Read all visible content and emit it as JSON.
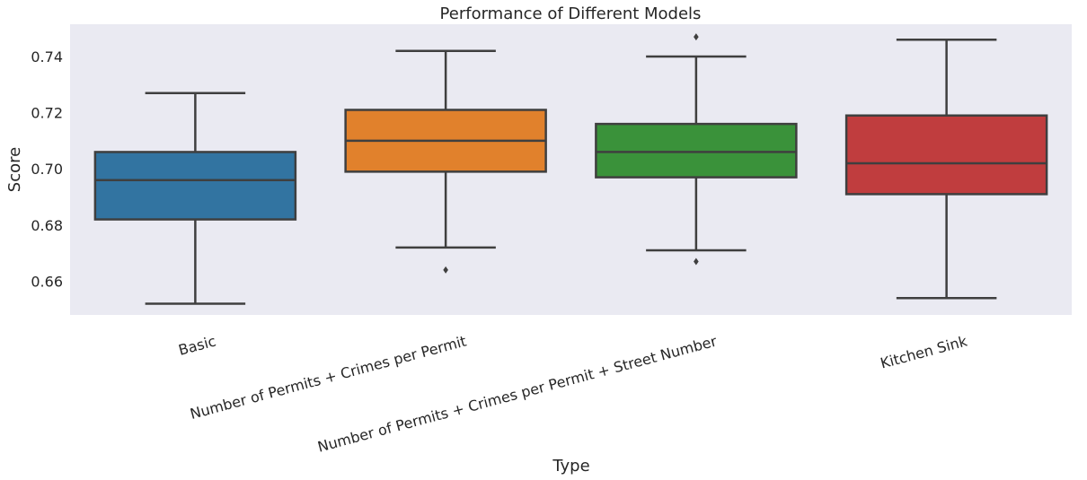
{
  "chart_data": {
    "type": "boxplot",
    "title": "Performance of Different Models",
    "xlabel": "Type",
    "ylabel": "Score",
    "ylim": [
      0.648,
      0.7515
    ],
    "yticks": [
      0.66,
      0.68,
      0.7,
      0.72,
      0.74
    ],
    "ytick_labels": [
      "0.66",
      "0.68",
      "0.70",
      "0.72",
      "0.74"
    ],
    "grid": false,
    "background": "#eaeaf2",
    "categories": [
      "Basic",
      "Number of Permits + Crimes per Permit",
      "Number of Permits + Crimes per Permit + Street Number",
      "Kitchen Sink"
    ],
    "boxes": [
      {
        "whisker_low": 0.652,
        "q1": 0.682,
        "median": 0.696,
        "q3": 0.706,
        "whisker_high": 0.727,
        "outliers": [],
        "color": "#3274a1"
      },
      {
        "whisker_low": 0.672,
        "q1": 0.699,
        "median": 0.71,
        "q3": 0.721,
        "whisker_high": 0.742,
        "outliers": [
          0.664
        ],
        "color": "#e1812c"
      },
      {
        "whisker_low": 0.671,
        "q1": 0.697,
        "median": 0.706,
        "q3": 0.716,
        "whisker_high": 0.74,
        "outliers": [
          0.667,
          0.747
        ],
        "color": "#3a923a"
      },
      {
        "whisker_low": 0.654,
        "q1": 0.691,
        "median": 0.702,
        "q3": 0.719,
        "whisker_high": 0.746,
        "outliers": [],
        "color": "#c03d3e"
      }
    ]
  }
}
